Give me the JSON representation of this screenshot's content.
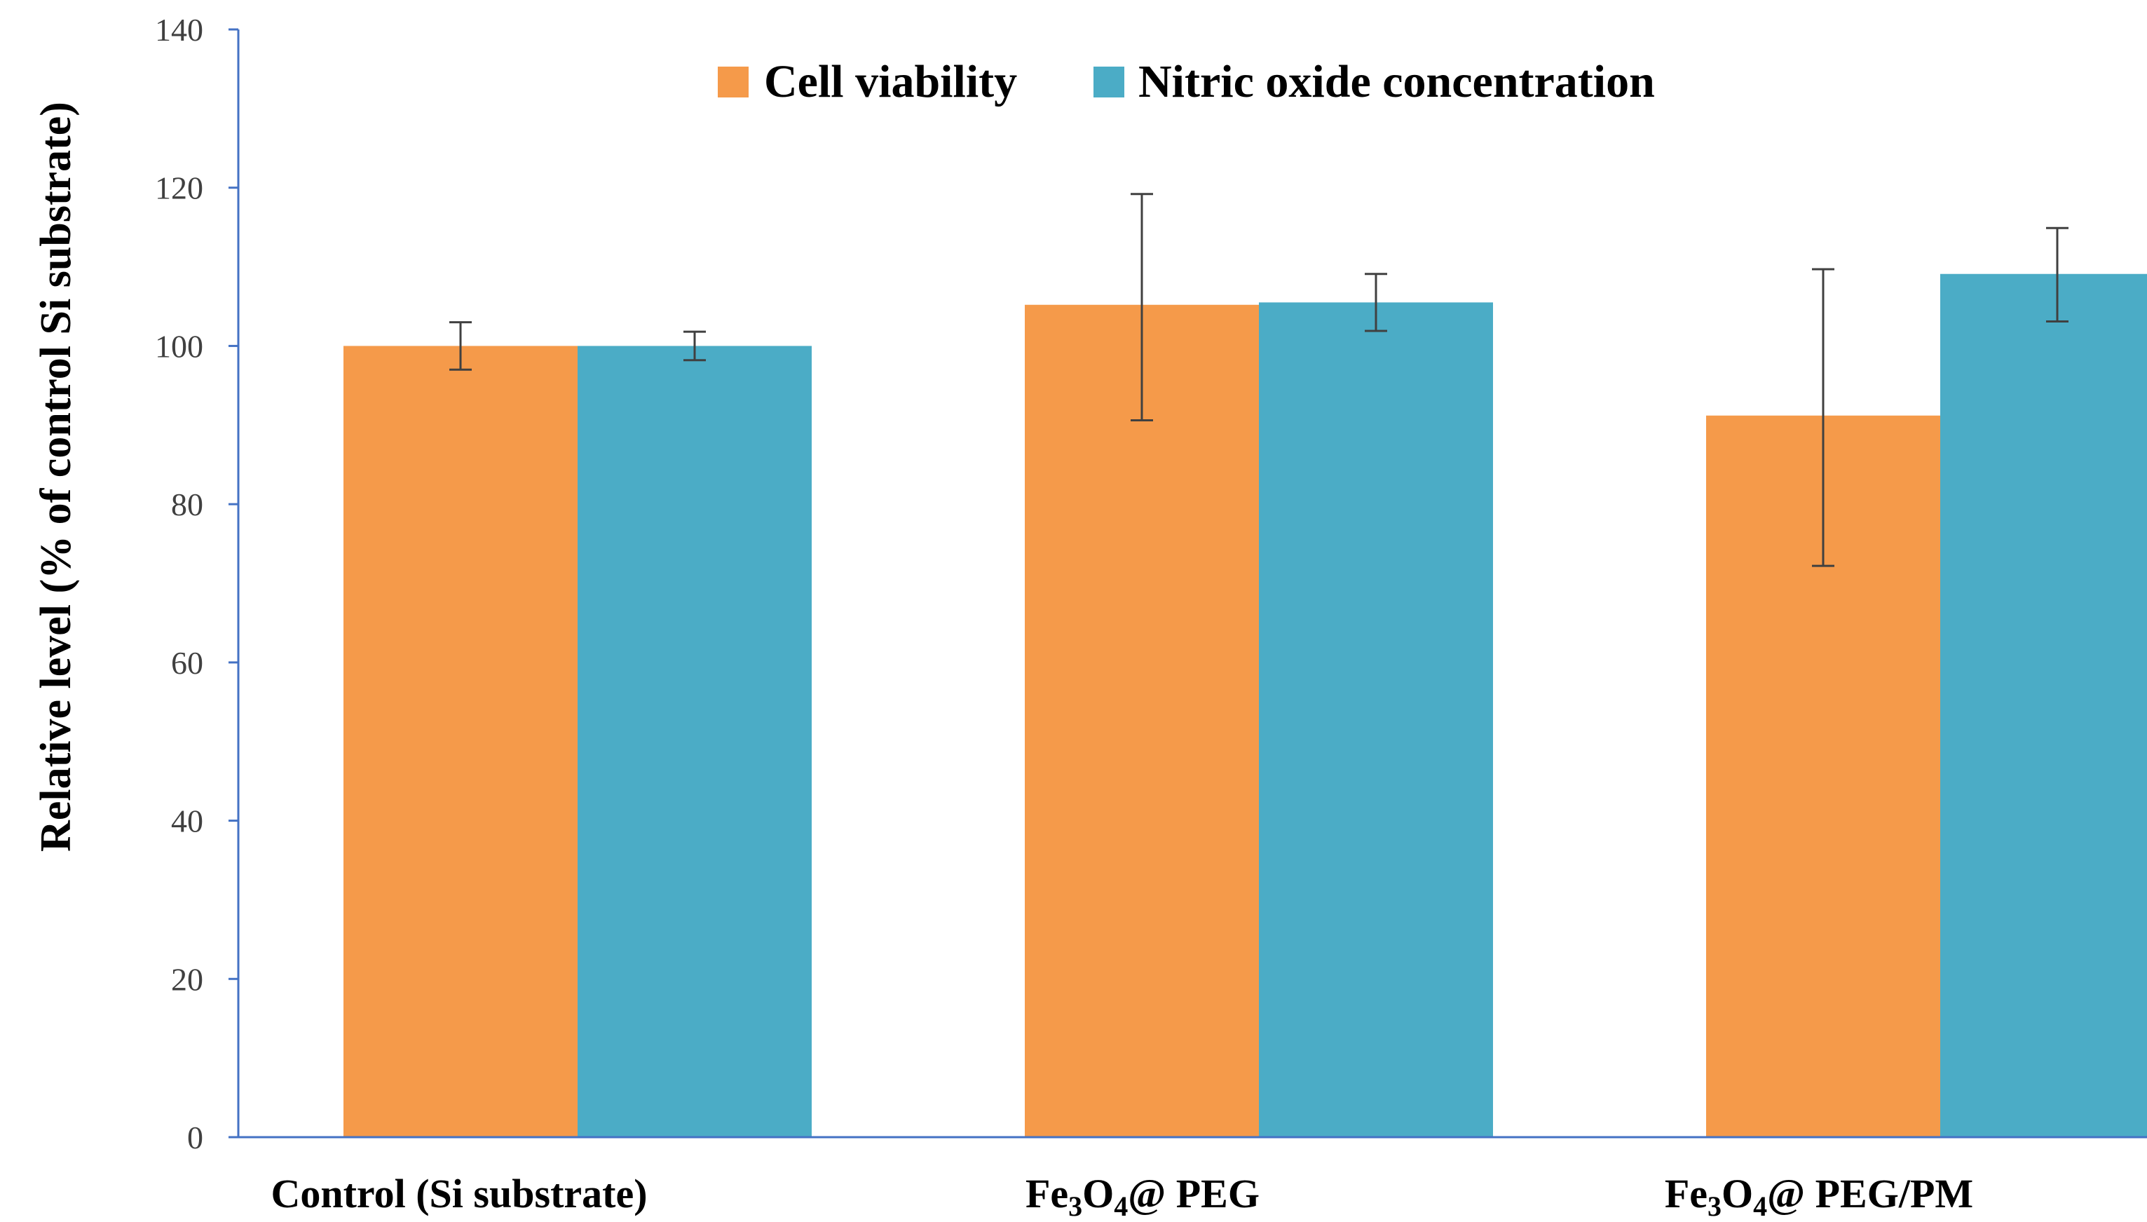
{
  "chart_data": {
    "type": "bar",
    "title": "",
    "xlabel": "",
    "ylabel": "Relative level (% of control Si substrate)",
    "ylim": [
      0,
      140
    ],
    "yticks": [
      "0",
      "20",
      "40",
      "60",
      "80",
      "100",
      "120",
      "140"
    ],
    "grid": false,
    "legend_position": "top-center",
    "categories": [
      {
        "main": "Control (Si substrate)",
        "parts": []
      },
      {
        "main": "Fe3O4@ PEG",
        "parts": [
          {
            "t": "Fe",
            "sub": false
          },
          {
            "t": "3",
            "sub": true
          },
          {
            "t": "O",
            "sub": false
          },
          {
            "t": "4",
            "sub": true
          },
          {
            "t": "@ PEG",
            "sub": false
          }
        ]
      },
      {
        "main": "Fe3O4@ PEG/PM",
        "parts": [
          {
            "t": "Fe",
            "sub": false
          },
          {
            "t": "3",
            "sub": true
          },
          {
            "t": "O",
            "sub": false
          },
          {
            "t": "4",
            "sub": true
          },
          {
            "t": "@ PEG/PM",
            "sub": false
          }
        ]
      }
    ],
    "series": [
      {
        "name": "Cell viability",
        "color": "#F59A4A",
        "values": [
          100,
          105.2,
          91.2
        ],
        "errors_low": [
          3.0,
          14.6,
          19.0
        ],
        "errors_high": [
          3.0,
          14.0,
          18.5
        ]
      },
      {
        "name": "Nitric oxide concentration",
        "color": "#4BACC6",
        "values": [
          100,
          105.5,
          109.1
        ],
        "errors_low": [
          1.8,
          3.6,
          6.0
        ],
        "errors_high": [
          1.8,
          3.6,
          5.8
        ]
      }
    ],
    "colors": {
      "axis": "#4472C4",
      "tick_text": "#404040",
      "error_bar": "#404040"
    }
  }
}
